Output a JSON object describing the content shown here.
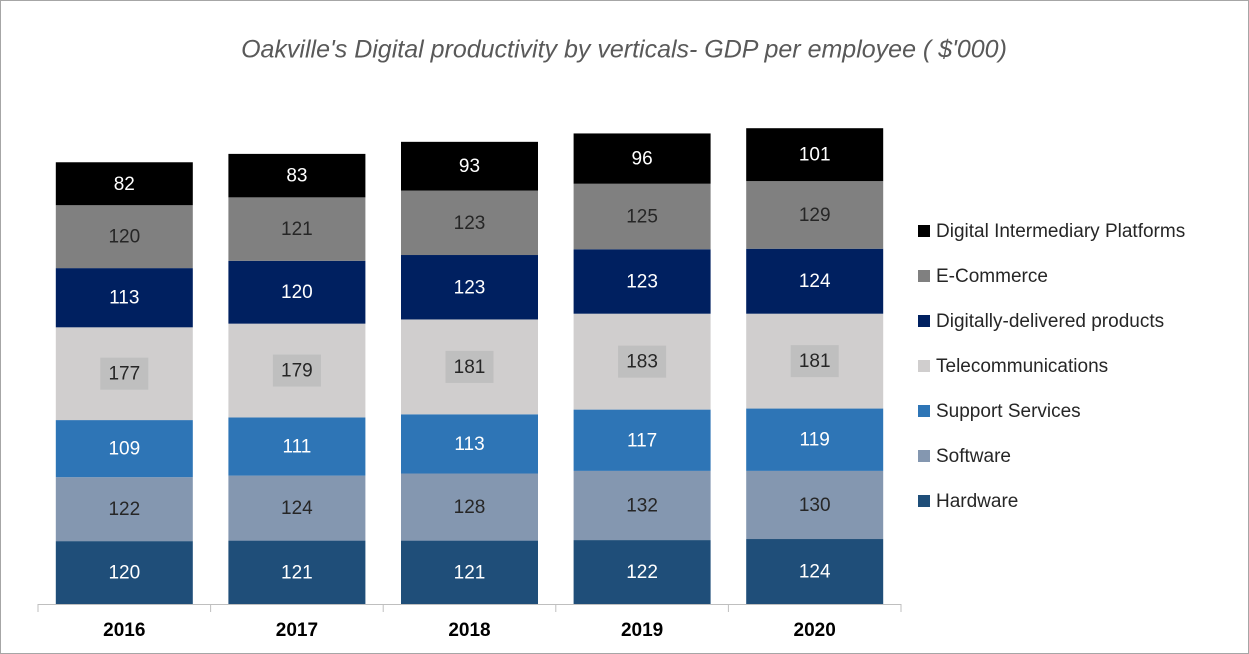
{
  "chart_data": {
    "type": "stacked_bar",
    "title": "Oakville's Digital productivity by verticals- GDP per employee ( $'000)",
    "categories": [
      "2016",
      "2017",
      "2018",
      "2019",
      "2020"
    ],
    "ylim": [
      0,
      1000
    ],
    "legend": "right",
    "series": [
      {
        "name": "Hardware",
        "color": "#1f4e79",
        "values": [
          120,
          121,
          121,
          122,
          124
        ]
      },
      {
        "name": "Software",
        "color": "#8497b0",
        "values": [
          122,
          124,
          128,
          132,
          130
        ]
      },
      {
        "name": "Support Services",
        "color": "#2e75b6",
        "values": [
          109,
          111,
          113,
          117,
          119
        ]
      },
      {
        "name": "Telecommunications",
        "color": "#d0cece",
        "values": [
          177,
          179,
          181,
          183,
          181
        ]
      },
      {
        "name": "Digitally-delivered products",
        "color": "#002060",
        "values": [
          113,
          120,
          123,
          123,
          124
        ]
      },
      {
        "name": "E-Commerce",
        "color": "#808080",
        "values": [
          120,
          121,
          123,
          125,
          129
        ]
      },
      {
        "name": "Digital Intermediary Platforms",
        "color": "#000000",
        "values": [
          82,
          83,
          93,
          96,
          101
        ]
      }
    ]
  }
}
